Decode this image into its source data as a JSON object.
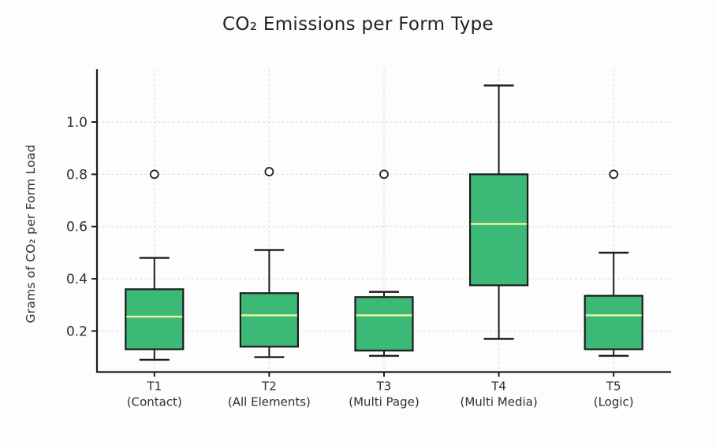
{
  "chart_data": {
    "type": "box",
    "title": "CO₂ Emissions per Form Type",
    "ylabel": "Grams of CO₂ per Form Load",
    "xlabel": "",
    "ylim": [
      0.043,
      1.202
    ],
    "yticks": [
      0.2,
      0.4,
      0.6,
      0.8,
      1.0
    ],
    "grid": true,
    "legend": "none",
    "categories": [
      {
        "label": "T1",
        "sublabel": "(Contact)"
      },
      {
        "label": "T2",
        "sublabel": "(All Elements)"
      },
      {
        "label": "T3",
        "sublabel": "(Multi Page)"
      },
      {
        "label": "T4",
        "sublabel": "(Multi Media)"
      },
      {
        "label": "T5",
        "sublabel": "(Logic)"
      }
    ],
    "series": [
      {
        "name": "T1 (Contact)",
        "whisker_low": 0.09,
        "q1": 0.13,
        "median": 0.255,
        "q3": 0.36,
        "whisker_high": 0.48,
        "outliers": [
          0.8
        ]
      },
      {
        "name": "T2 (All Elements)",
        "whisker_low": 0.1,
        "q1": 0.14,
        "median": 0.26,
        "q3": 0.345,
        "whisker_high": 0.51,
        "outliers": [
          0.81
        ]
      },
      {
        "name": "T3 (Multi Page)",
        "whisker_low": 0.105,
        "q1": 0.125,
        "median": 0.26,
        "q3": 0.33,
        "whisker_high": 0.35,
        "outliers": [
          0.8
        ]
      },
      {
        "name": "T4 (Multi Media)",
        "whisker_low": 0.17,
        "q1": 0.375,
        "median": 0.61,
        "q3": 0.8,
        "whisker_high": 1.14,
        "outliers": []
      },
      {
        "name": "T5 (Logic)",
        "whisker_low": 0.105,
        "q1": 0.13,
        "median": 0.26,
        "q3": 0.335,
        "whisker_high": 0.5,
        "outliers": [
          0.8
        ]
      }
    ],
    "colors": {
      "box_fill": "#3db977",
      "box_stroke": "#1c1c1c",
      "median_line": "#eff59d",
      "grid_line": "#dfdfdf",
      "axis_line": "#1c1c1c",
      "text": "#2e2e2e",
      "outlier_fill": "#ffffff",
      "background": "#fdfdfd"
    }
  }
}
